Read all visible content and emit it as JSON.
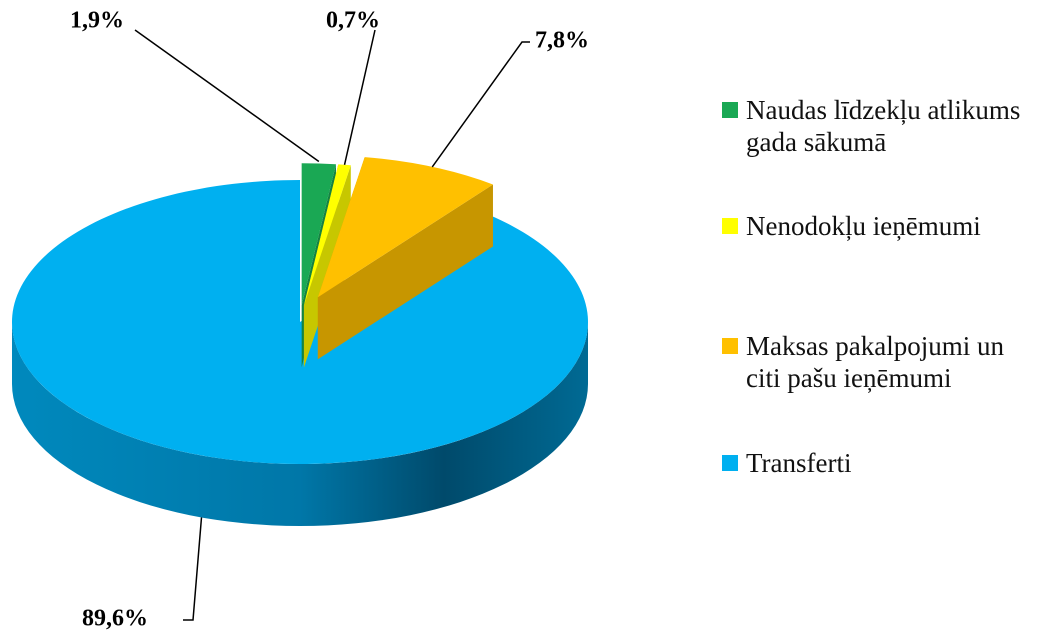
{
  "chart_data": {
    "type": "pie",
    "categories": [
      "Naudas līdzekļu atlikums gada sākumā",
      "Nenodokļu ieņēmumi",
      "Maksas pakalpojumi un citi pašu ieņēmumi",
      "Transferti"
    ],
    "values": [
      1.9,
      0.7,
      7.8,
      89.6
    ],
    "value_labels": [
      "1,9%",
      "0,7%",
      "7,8%",
      "89,6%"
    ],
    "colors": [
      "#1aa854",
      "#ffff00",
      "#ffc000",
      "#00b0f0"
    ],
    "legend": "right"
  }
}
